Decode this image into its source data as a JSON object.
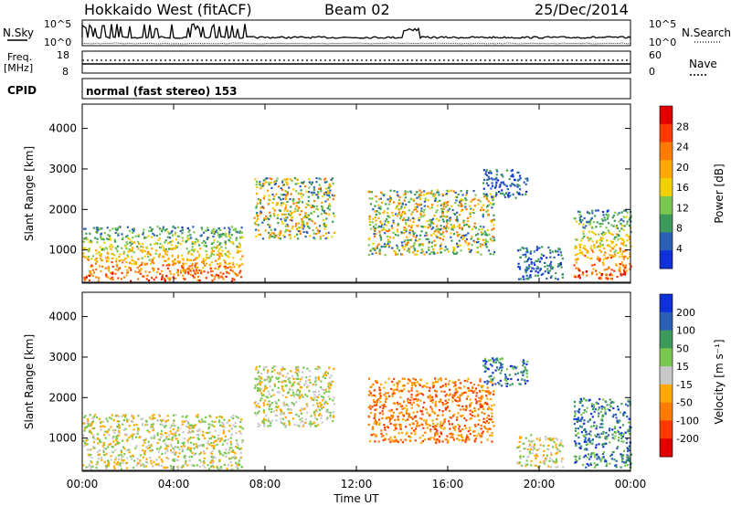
{
  "header": {
    "title": "Hokkaido West (fitACF)",
    "beam": "Beam 02",
    "date": "25/Dec/2014"
  },
  "params": {
    "nsky_label": "N.Sky",
    "nsky_ticks": [
      "10^5",
      "10^0"
    ],
    "nsearch_label": "N.Search",
    "nsearch_ticks": [
      "10^5",
      "10^0"
    ],
    "freq_label": "Freq.",
    "freq_unit": "[MHz]",
    "freq_ticks": [
      "18",
      "8"
    ],
    "nave_label": "Nave",
    "nave_ticks": [
      "60",
      "0"
    ],
    "cpid_label": "CPID",
    "cpid_text": "normal (fast stereo) 153"
  },
  "chart_data": [
    {
      "type": "heatmap",
      "name": "power",
      "ylabel": "Slant Range [km]",
      "yticks": [
        1000,
        2000,
        3000,
        4000
      ],
      "ylim": [
        180,
        4600
      ],
      "xlim_hours": [
        0,
        24
      ],
      "colorbar": {
        "label": "Power [dB]",
        "ticks": [
          "28",
          "24",
          "20",
          "16",
          "12",
          "8",
          "4"
        ],
        "colors": [
          "#e00000",
          "#ff3a00",
          "#ff7a00",
          "#ffa800",
          "#f2d000",
          "#78c850",
          "#3c9a5a",
          "#2c60b8",
          "#1030d8"
        ]
      },
      "regions": [
        {
          "start_h": 0.0,
          "end_h": 7.0,
          "range_km": [
            250,
            1600
          ],
          "level": "high"
        },
        {
          "start_h": 7.5,
          "end_h": 11.0,
          "range_km": [
            1300,
            2800
          ],
          "level": "medium"
        },
        {
          "start_h": 12.5,
          "end_h": 18.0,
          "range_km": [
            900,
            2500
          ],
          "level": "medium"
        },
        {
          "start_h": 17.5,
          "end_h": 19.5,
          "range_km": [
            2300,
            3000
          ],
          "level": "low"
        },
        {
          "start_h": 19.0,
          "end_h": 21.0,
          "range_km": [
            300,
            1100
          ],
          "level": "low"
        },
        {
          "start_h": 21.5,
          "end_h": 24.0,
          "range_km": [
            300,
            2000
          ],
          "level": "high"
        }
      ]
    },
    {
      "type": "heatmap",
      "name": "velocity",
      "ylabel": "Slant Range [km]",
      "yticks": [
        1000,
        2000,
        3000,
        4000
      ],
      "ylim": [
        180,
        4600
      ],
      "xlim_hours": [
        0,
        24
      ],
      "xticks": [
        "00:00",
        "04:00",
        "08:00",
        "12:00",
        "16:00",
        "20:00",
        "00:00"
      ],
      "xlabel": "Time UT",
      "colorbar": {
        "label": "Velocity [m s⁻¹]",
        "ticks": [
          "200",
          "100",
          "50",
          "15",
          "-15",
          "-50",
          "-100",
          "-200"
        ],
        "colors": [
          "#1030d8",
          "#2c60b8",
          "#3c9a5a",
          "#78c850",
          "#c8c8c8",
          "#ffa800",
          "#ff7a00",
          "#ff3a00",
          "#e00000"
        ]
      },
      "regions": [
        {
          "start_h": 0.0,
          "end_h": 7.0,
          "range_km": [
            250,
            1600
          ],
          "level": "near-zero"
        },
        {
          "start_h": 7.5,
          "end_h": 11.0,
          "range_km": [
            1300,
            2800
          ],
          "level": "near-zero"
        },
        {
          "start_h": 12.5,
          "end_h": 18.0,
          "range_km": [
            900,
            2500
          ],
          "level": "negative"
        },
        {
          "start_h": 17.5,
          "end_h": 19.5,
          "range_km": [
            2300,
            3000
          ],
          "level": "positive"
        },
        {
          "start_h": 19.0,
          "end_h": 21.0,
          "range_km": [
            300,
            1100
          ],
          "level": "near-zero"
        },
        {
          "start_h": 21.5,
          "end_h": 24.0,
          "range_km": [
            300,
            2000
          ],
          "level": "positive"
        }
      ]
    }
  ]
}
